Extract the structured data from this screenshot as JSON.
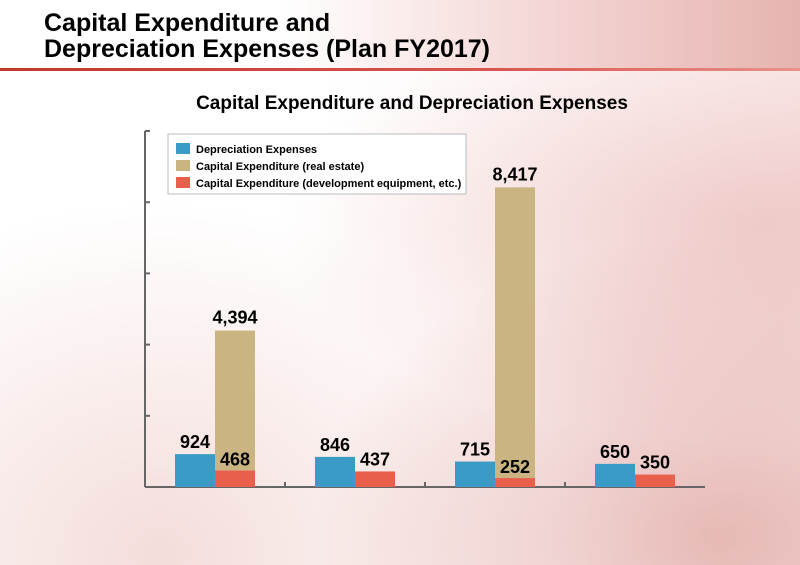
{
  "slide": {
    "title_line1": "Capital Expenditure and",
    "title_line2": "Depreciation Expenses (Plan FY2017)"
  },
  "colors": {
    "depreciation": "#3a9cc6",
    "capex_real_estate": "#c9b482",
    "capex_dev_equipment": "#e8604c",
    "axis": "#666666"
  },
  "chart_data": {
    "type": "bar",
    "title": "Capital Expenditure and Depreciation Expenses",
    "xlabel": "",
    "ylabel": "",
    "ylim": [
      0,
      10000
    ],
    "categories": [
      "",
      "",
      "",
      ""
    ],
    "series": [
      {
        "name": "Depreciation Expenses",
        "values": [
          924,
          846,
          715,
          650
        ]
      },
      {
        "name": "Capital Expenditure (real estate)",
        "values": [
          4394,
          null,
          8417,
          null
        ]
      },
      {
        "name": "Capital Expenditure (development equipment, etc.)",
        "values": [
          468,
          437,
          252,
          350
        ]
      }
    ],
    "data_labels": {
      "depreciation": [
        "924",
        "846",
        "715",
        "650"
      ],
      "capex_total": [
        "4,394",
        null,
        "8,417",
        null
      ],
      "capex_dev": [
        "468",
        "437",
        "252",
        "350"
      ]
    },
    "legend_position": "top-left",
    "grid": false
  }
}
